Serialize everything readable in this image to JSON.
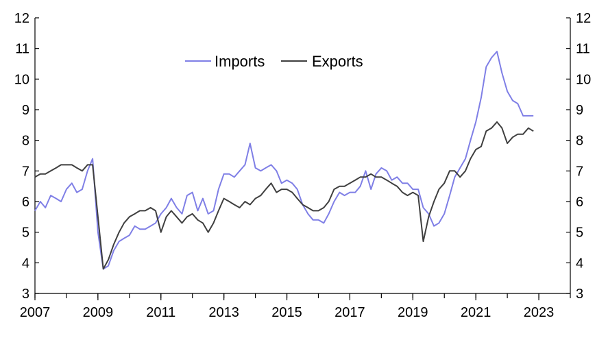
{
  "chart_data": {
    "type": "line",
    "title": "",
    "xlabel": "",
    "ylabel": "",
    "xlim": [
      2007,
      2024.0
    ],
    "ylim": [
      3,
      12
    ],
    "x_ticks": [
      "2007",
      "2009",
      "2011",
      "2013",
      "2015",
      "2017",
      "2019",
      "2021",
      "2023"
    ],
    "y_ticks": [
      "3",
      "4",
      "5",
      "6",
      "7",
      "8",
      "9",
      "10",
      "11",
      "12"
    ],
    "grid": false,
    "legend": "top-center",
    "colors": {
      "Imports": "#7f7fe6",
      "Exports": "#3f3f3f"
    },
    "series": [
      {
        "name": "Imports",
        "points": [
          [
            2007.0,
            5.7
          ],
          [
            2007.17,
            6.0
          ],
          [
            2007.33,
            5.8
          ],
          [
            2007.5,
            6.2
          ],
          [
            2007.67,
            6.1
          ],
          [
            2007.83,
            6.0
          ],
          [
            2008.0,
            6.4
          ],
          [
            2008.17,
            6.6
          ],
          [
            2008.33,
            6.3
          ],
          [
            2008.5,
            6.4
          ],
          [
            2008.67,
            7.0
          ],
          [
            2008.83,
            7.4
          ],
          [
            2009.0,
            5.0
          ],
          [
            2009.17,
            3.8
          ],
          [
            2009.33,
            3.9
          ],
          [
            2009.5,
            4.4
          ],
          [
            2009.67,
            4.7
          ],
          [
            2009.83,
            4.8
          ],
          [
            2010.0,
            4.9
          ],
          [
            2010.17,
            5.2
          ],
          [
            2010.33,
            5.1
          ],
          [
            2010.5,
            5.1
          ],
          [
            2010.67,
            5.2
          ],
          [
            2010.83,
            5.3
          ],
          [
            2011.0,
            5.6
          ],
          [
            2011.17,
            5.8
          ],
          [
            2011.33,
            6.1
          ],
          [
            2011.5,
            5.8
          ],
          [
            2011.67,
            5.6
          ],
          [
            2011.83,
            6.2
          ],
          [
            2012.0,
            6.3
          ],
          [
            2012.17,
            5.7
          ],
          [
            2012.33,
            6.1
          ],
          [
            2012.5,
            5.6
          ],
          [
            2012.67,
            5.7
          ],
          [
            2012.83,
            6.4
          ],
          [
            2013.0,
            6.9
          ],
          [
            2013.17,
            6.9
          ],
          [
            2013.33,
            6.8
          ],
          [
            2013.5,
            7.0
          ],
          [
            2013.67,
            7.2
          ],
          [
            2013.83,
            7.9
          ],
          [
            2014.0,
            7.1
          ],
          [
            2014.17,
            7.0
          ],
          [
            2014.33,
            7.1
          ],
          [
            2014.5,
            7.2
          ],
          [
            2014.67,
            7.0
          ],
          [
            2014.83,
            6.6
          ],
          [
            2015.0,
            6.7
          ],
          [
            2015.17,
            6.6
          ],
          [
            2015.33,
            6.4
          ],
          [
            2015.5,
            5.9
          ],
          [
            2015.67,
            5.6
          ],
          [
            2015.83,
            5.4
          ],
          [
            2016.0,
            5.4
          ],
          [
            2016.17,
            5.3
          ],
          [
            2016.33,
            5.6
          ],
          [
            2016.5,
            6.0
          ],
          [
            2016.67,
            6.3
          ],
          [
            2016.83,
            6.2
          ],
          [
            2017.0,
            6.3
          ],
          [
            2017.17,
            6.3
          ],
          [
            2017.33,
            6.5
          ],
          [
            2017.5,
            7.0
          ],
          [
            2017.67,
            6.4
          ],
          [
            2017.83,
            6.9
          ],
          [
            2018.0,
            7.1
          ],
          [
            2018.17,
            7.0
          ],
          [
            2018.33,
            6.7
          ],
          [
            2018.5,
            6.8
          ],
          [
            2018.67,
            6.6
          ],
          [
            2018.83,
            6.6
          ],
          [
            2019.0,
            6.4
          ],
          [
            2019.17,
            6.4
          ],
          [
            2019.33,
            5.8
          ],
          [
            2019.5,
            5.6
          ],
          [
            2019.67,
            5.2
          ],
          [
            2019.83,
            5.3
          ],
          [
            2020.0,
            5.6
          ],
          [
            2020.17,
            6.2
          ],
          [
            2020.33,
            6.8
          ],
          [
            2020.5,
            7.1
          ],
          [
            2020.67,
            7.4
          ],
          [
            2020.83,
            8.0
          ],
          [
            2021.0,
            8.6
          ],
          [
            2021.17,
            9.4
          ],
          [
            2021.33,
            10.4
          ],
          [
            2021.5,
            10.7
          ],
          [
            2021.67,
            10.9
          ],
          [
            2021.83,
            10.2
          ],
          [
            2022.0,
            9.6
          ],
          [
            2022.17,
            9.3
          ],
          [
            2022.33,
            9.2
          ],
          [
            2022.5,
            8.8
          ],
          [
            2022.67,
            8.8
          ],
          [
            2022.83,
            8.8
          ]
        ]
      },
      {
        "name": "Exports",
        "points": [
          [
            2007.0,
            6.8
          ],
          [
            2007.17,
            6.9
          ],
          [
            2007.33,
            6.9
          ],
          [
            2007.5,
            7.0
          ],
          [
            2007.67,
            7.1
          ],
          [
            2007.83,
            7.2
          ],
          [
            2008.0,
            7.2
          ],
          [
            2008.17,
            7.2
          ],
          [
            2008.33,
            7.1
          ],
          [
            2008.5,
            7.0
          ],
          [
            2008.67,
            7.2
          ],
          [
            2008.83,
            7.2
          ],
          [
            2009.0,
            5.5
          ],
          [
            2009.17,
            3.8
          ],
          [
            2009.33,
            4.1
          ],
          [
            2009.5,
            4.6
          ],
          [
            2009.67,
            5.0
          ],
          [
            2009.83,
            5.3
          ],
          [
            2010.0,
            5.5
          ],
          [
            2010.17,
            5.6
          ],
          [
            2010.33,
            5.7
          ],
          [
            2010.5,
            5.7
          ],
          [
            2010.67,
            5.8
          ],
          [
            2010.83,
            5.7
          ],
          [
            2011.0,
            5.0
          ],
          [
            2011.17,
            5.5
          ],
          [
            2011.33,
            5.7
          ],
          [
            2011.5,
            5.5
          ],
          [
            2011.67,
            5.3
          ],
          [
            2011.83,
            5.5
          ],
          [
            2012.0,
            5.6
          ],
          [
            2012.17,
            5.4
          ],
          [
            2012.33,
            5.3
          ],
          [
            2012.5,
            5.0
          ],
          [
            2012.67,
            5.3
          ],
          [
            2012.83,
            5.7
          ],
          [
            2013.0,
            6.1
          ],
          [
            2013.17,
            6.0
          ],
          [
            2013.33,
            5.9
          ],
          [
            2013.5,
            5.8
          ],
          [
            2013.67,
            6.0
          ],
          [
            2013.83,
            5.9
          ],
          [
            2014.0,
            6.1
          ],
          [
            2014.17,
            6.2
          ],
          [
            2014.33,
            6.4
          ],
          [
            2014.5,
            6.6
          ],
          [
            2014.67,
            6.3
          ],
          [
            2014.83,
            6.4
          ],
          [
            2015.0,
            6.4
          ],
          [
            2015.17,
            6.3
          ],
          [
            2015.33,
            6.1
          ],
          [
            2015.5,
            5.9
          ],
          [
            2015.67,
            5.8
          ],
          [
            2015.83,
            5.7
          ],
          [
            2016.0,
            5.7
          ],
          [
            2016.17,
            5.8
          ],
          [
            2016.33,
            6.0
          ],
          [
            2016.5,
            6.4
          ],
          [
            2016.67,
            6.5
          ],
          [
            2016.83,
            6.5
          ],
          [
            2017.0,
            6.6
          ],
          [
            2017.17,
            6.7
          ],
          [
            2017.33,
            6.8
          ],
          [
            2017.5,
            6.8
          ],
          [
            2017.67,
            6.9
          ],
          [
            2017.83,
            6.8
          ],
          [
            2018.0,
            6.8
          ],
          [
            2018.17,
            6.7
          ],
          [
            2018.33,
            6.6
          ],
          [
            2018.5,
            6.5
          ],
          [
            2018.67,
            6.3
          ],
          [
            2018.83,
            6.2
          ],
          [
            2019.0,
            6.3
          ],
          [
            2019.17,
            6.2
          ],
          [
            2019.33,
            4.7
          ],
          [
            2019.5,
            5.5
          ],
          [
            2019.67,
            6.0
          ],
          [
            2019.83,
            6.4
          ],
          [
            2020.0,
            6.6
          ],
          [
            2020.17,
            7.0
          ],
          [
            2020.33,
            7.0
          ],
          [
            2020.5,
            6.8
          ],
          [
            2020.67,
            7.0
          ],
          [
            2020.83,
            7.4
          ],
          [
            2021.0,
            7.7
          ],
          [
            2021.17,
            7.8
          ],
          [
            2021.33,
            8.3
          ],
          [
            2021.5,
            8.4
          ],
          [
            2021.67,
            8.6
          ],
          [
            2021.83,
            8.4
          ],
          [
            2022.0,
            7.9
          ],
          [
            2022.17,
            8.1
          ],
          [
            2022.33,
            8.2
          ],
          [
            2022.5,
            8.2
          ],
          [
            2022.67,
            8.4
          ],
          [
            2022.83,
            8.3
          ]
        ]
      }
    ]
  }
}
